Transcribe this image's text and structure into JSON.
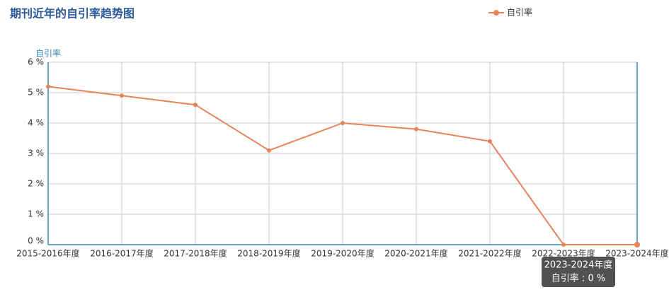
{
  "chart_data": {
    "type": "line",
    "title": "期刊近年的自引率趋势图",
    "y_label": "自引率",
    "categories": [
      "2015-2016年度",
      "2016-2017年度",
      "2017-2018年度",
      "2018-2019年度",
      "2019-2020年度",
      "2020-2021年度",
      "2021-2022年度",
      "2022-2023年度",
      "2023-2024年度"
    ],
    "series": [
      {
        "name": "自引率",
        "color": "#e8825a",
        "values": [
          5.2,
          4.9,
          4.6,
          3.1,
          4.0,
          3.8,
          3.4,
          0,
          0
        ]
      }
    ],
    "ylim": [
      0,
      6
    ],
    "yticks": [
      {
        "value": 0,
        "label": "0 %"
      },
      {
        "value": 1,
        "label": "1 %"
      },
      {
        "value": 2,
        "label": "2 %"
      },
      {
        "value": 3,
        "label": "3 %"
      },
      {
        "value": 4,
        "label": "4 %"
      },
      {
        "value": 5,
        "label": "5 %"
      },
      {
        "value": 6,
        "label": "6 %"
      }
    ],
    "grid": true,
    "legend": "top-right",
    "tooltip": {
      "title": "2023-2024年度",
      "text": "自引率 : 0 %"
    }
  }
}
